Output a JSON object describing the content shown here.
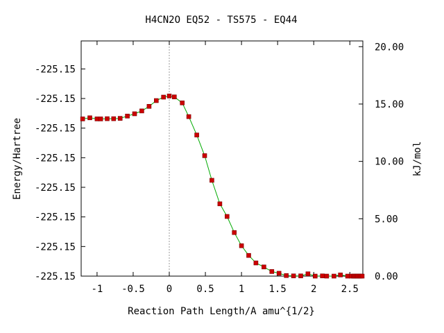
{
  "chart_data": {
    "type": "line",
    "title": "H4CN2O   EQ52 - TS575 - EQ44",
    "xlabel": "Reaction Path Length/A amu^{1/2}",
    "ylabel": "Energy/Hartree",
    "y2label": "kJ/mol",
    "xlim": [
      -1.22,
      2.68
    ],
    "y2lim": [
      0,
      20.5
    ],
    "x_ticks": [
      {
        "value": -1,
        "label": "-1"
      },
      {
        "value": -0.5,
        "label": "-0.5"
      },
      {
        "value": 0,
        "label": "0"
      },
      {
        "value": 0.5,
        "label": "0.5"
      },
      {
        "value": 1,
        "label": "1"
      },
      {
        "value": 1.5,
        "label": "1.5"
      },
      {
        "value": 2,
        "label": "2"
      },
      {
        "value": 2.5,
        "label": "2.5"
      }
    ],
    "y_ticks_left": [
      {
        "kj": 0,
        "label": "-225.15"
      },
      {
        "kj": 2.58,
        "label": "-225.15"
      },
      {
        "kj": 5.16,
        "label": "-225.15"
      },
      {
        "kj": 7.74,
        "label": "-225.15"
      },
      {
        "kj": 10.32,
        "label": "-225.15"
      },
      {
        "kj": 12.9,
        "label": "-225.15"
      },
      {
        "kj": 15.48,
        "label": "-225.15"
      },
      {
        "kj": 18.06,
        "label": "-225.15"
      }
    ],
    "y_ticks_right": [
      {
        "value": 0,
        "label": "0.00"
      },
      {
        "value": 5,
        "label": "5.00"
      },
      {
        "value": 10,
        "label": "10.00"
      },
      {
        "value": 15,
        "label": "15.00"
      },
      {
        "value": 20,
        "label": "20.00"
      }
    ],
    "ts_marker_x": 0,
    "series": [
      {
        "line_color": "#00aa00",
        "marker_color": "#cc0000",
        "points": [
          [
            -1.2,
            13.7
          ],
          [
            -1.1,
            13.8
          ],
          [
            -1.0,
            13.7
          ],
          [
            -0.95,
            13.7
          ],
          [
            -0.86,
            13.72
          ],
          [
            -0.77,
            13.72
          ],
          [
            -0.68,
            13.75
          ],
          [
            -0.58,
            13.95
          ],
          [
            -0.48,
            14.15
          ],
          [
            -0.38,
            14.4
          ],
          [
            -0.28,
            14.8
          ],
          [
            -0.18,
            15.3
          ],
          [
            -0.08,
            15.6
          ],
          [
            0.0,
            15.7
          ],
          [
            0.07,
            15.62
          ],
          [
            0.18,
            15.1
          ],
          [
            0.27,
            13.9
          ],
          [
            0.38,
            12.3
          ],
          [
            0.49,
            10.5
          ],
          [
            0.59,
            8.35
          ],
          [
            0.7,
            6.3
          ],
          [
            0.8,
            5.2
          ],
          [
            0.9,
            3.8
          ],
          [
            1.0,
            2.65
          ],
          [
            1.1,
            1.8
          ],
          [
            1.2,
            1.15
          ],
          [
            1.31,
            0.8
          ],
          [
            1.42,
            0.4
          ],
          [
            1.52,
            0.25
          ],
          [
            1.62,
            0.05
          ],
          [
            1.72,
            0.02
          ],
          [
            1.82,
            0.02
          ],
          [
            1.92,
            0.2
          ],
          [
            2.02,
            0.0
          ],
          [
            2.12,
            0.02
          ],
          [
            2.18,
            0.0
          ],
          [
            2.28,
            0.0
          ],
          [
            2.37,
            0.1
          ],
          [
            2.47,
            0.0
          ],
          [
            2.52,
            0.0
          ],
          [
            2.55,
            0.0
          ],
          [
            2.57,
            0.0
          ],
          [
            2.59,
            0.0
          ],
          [
            2.61,
            0.0
          ],
          [
            2.63,
            0.0
          ],
          [
            2.65,
            0.0
          ],
          [
            2.67,
            0.0
          ]
        ]
      }
    ]
  }
}
